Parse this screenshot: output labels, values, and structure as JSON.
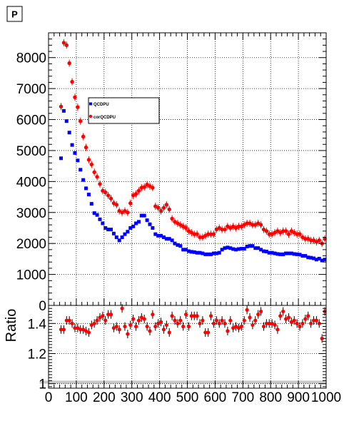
{
  "page_title": "P",
  "chart_data": [
    {
      "type": "scatter",
      "panel": "main",
      "title": "",
      "xlabel": "",
      "ylabel": "",
      "xlim": [
        0,
        1000
      ],
      "ylim": [
        0,
        8800
      ],
      "xticks": [
        0,
        100,
        200,
        300,
        400,
        500,
        600,
        700,
        800,
        900,
        1000
      ],
      "xtick_labels": [
        "0",
        "100",
        "200",
        "300",
        "400",
        "500",
        "600",
        "700",
        "800",
        "900",
        "1000"
      ],
      "yticks": [
        0,
        1000,
        2000,
        3000,
        4000,
        5000,
        6000,
        7000,
        8000
      ],
      "ytick_labels": [
        "0",
        "1000",
        "2000",
        "3000",
        "4000",
        "5000",
        "6000",
        "7000",
        "8000"
      ],
      "grid": true,
      "legend_position": "upper-left",
      "series": [
        {
          "name": "QCDPU",
          "color": "#0000ff",
          "marker": "square",
          "x": [
            45,
            55,
            65,
            75,
            85,
            95,
            105,
            115,
            125,
            135,
            145,
            155,
            165,
            175,
            185,
            195,
            205,
            215,
            225,
            235,
            245,
            255,
            265,
            275,
            285,
            295,
            305,
            315,
            325,
            335,
            345,
            355,
            365,
            375,
            385,
            395,
            405,
            415,
            425,
            435,
            445,
            455,
            465,
            475,
            485,
            495,
            505,
            515,
            525,
            535,
            545,
            555,
            565,
            575,
            585,
            595,
            605,
            615,
            625,
            635,
            645,
            655,
            665,
            675,
            685,
            695,
            705,
            715,
            725,
            735,
            745,
            755,
            765,
            775,
            785,
            795,
            805,
            815,
            825,
            835,
            845,
            855,
            865,
            875,
            885,
            895,
            905,
            915,
            925,
            935,
            945,
            955,
            965,
            975,
            985,
            995
          ],
          "y": [
            4750,
            6280,
            5950,
            5580,
            5180,
            4920,
            4680,
            4380,
            4050,
            3780,
            3580,
            3280,
            2980,
            2920,
            2780,
            2650,
            2500,
            2450,
            2450,
            2320,
            2200,
            2100,
            2200,
            2300,
            2380,
            2500,
            2550,
            2650,
            2700,
            2900,
            2900,
            2750,
            2620,
            2500,
            2300,
            2250,
            2250,
            2200,
            2150,
            2150,
            2100,
            2000,
            1950,
            1920,
            1800,
            1800,
            1750,
            1730,
            1720,
            1700,
            1700,
            1680,
            1650,
            1650,
            1650,
            1680,
            1680,
            1700,
            1800,
            1850,
            1870,
            1850,
            1820,
            1800,
            1820,
            1830,
            1830,
            1900,
            1920,
            1920,
            1850,
            1850,
            1800,
            1750,
            1740,
            1700,
            1700,
            1680,
            1660,
            1650,
            1650,
            1680,
            1680,
            1680,
            1660,
            1650,
            1640,
            1600,
            1600,
            1550,
            1540,
            1520,
            1480,
            1510,
            1450,
            1480
          ]
        },
        {
          "name": "corQCDPU",
          "color": "#ff0000",
          "marker": "circle",
          "x": [
            45,
            55,
            65,
            75,
            85,
            95,
            105,
            115,
            125,
            135,
            145,
            155,
            165,
            175,
            185,
            195,
            205,
            215,
            225,
            235,
            245,
            255,
            265,
            275,
            285,
            295,
            305,
            315,
            325,
            335,
            345,
            355,
            365,
            375,
            385,
            395,
            405,
            415,
            425,
            435,
            445,
            455,
            465,
            475,
            485,
            495,
            505,
            515,
            525,
            535,
            545,
            555,
            565,
            575,
            585,
            595,
            605,
            615,
            625,
            635,
            645,
            655,
            665,
            675,
            685,
            695,
            705,
            715,
            725,
            735,
            745,
            755,
            765,
            775,
            785,
            795,
            805,
            815,
            825,
            835,
            845,
            855,
            865,
            875,
            885,
            895,
            905,
            915,
            925,
            935,
            945,
            955,
            965,
            975,
            985,
            995
          ],
          "y": [
            6420,
            8480,
            8400,
            7820,
            7220,
            6720,
            6400,
            5950,
            5450,
            5100,
            4700,
            4550,
            4300,
            4150,
            3920,
            3700,
            3650,
            3550,
            3450,
            3300,
            3250,
            3050,
            3000,
            3050,
            3000,
            3300,
            3550,
            3600,
            3700,
            3800,
            3820,
            3900,
            3850,
            3800,
            3200,
            3150,
            3050,
            3150,
            3250,
            3100,
            2800,
            2700,
            2650,
            2600,
            2550,
            2500,
            2400,
            2350,
            2300,
            2300,
            2200,
            2200,
            2250,
            2300,
            2300,
            2300,
            2450,
            2500,
            2450,
            2450,
            2550,
            2500,
            2550,
            2500,
            2550,
            2550,
            2600,
            2650,
            2650,
            2600,
            2600,
            2650,
            2600,
            2450,
            2400,
            2300,
            2300,
            2350,
            2400,
            2350,
            2400,
            2400,
            2300,
            2400,
            2350,
            2300,
            2300,
            2200,
            2150,
            2150,
            2100,
            2100,
            2050,
            2100,
            2000,
            2150
          ]
        }
      ]
    },
    {
      "type": "scatter",
      "panel": "ratio",
      "title": "",
      "xlabel": "",
      "ylabel": "Ratio",
      "xlim": [
        0,
        1000
      ],
      "ylim": [
        0.97,
        1.52
      ],
      "yticks": [
        1.0,
        1.2,
        1.4
      ],
      "ytick_labels": [
        "1",
        "1.2",
        "1.4"
      ],
      "grid": true,
      "band": {
        "color": "#c8c8c8",
        "low": 1.0,
        "high": 1.02
      },
      "series": [
        {
          "name": "",
          "color": "#ff0000",
          "marker": "circle",
          "x": [
            45,
            55,
            65,
            75,
            85,
            95,
            105,
            115,
            125,
            135,
            145,
            155,
            165,
            175,
            185,
            195,
            205,
            215,
            225,
            235,
            245,
            255,
            265,
            275,
            285,
            295,
            305,
            315,
            325,
            335,
            345,
            355,
            365,
            375,
            385,
            395,
            405,
            415,
            425,
            435,
            445,
            455,
            465,
            475,
            485,
            495,
            505,
            515,
            525,
            535,
            545,
            555,
            565,
            575,
            585,
            595,
            605,
            615,
            625,
            635,
            645,
            655,
            665,
            675,
            685,
            695,
            705,
            715,
            725,
            735,
            745,
            755,
            765,
            775,
            785,
            795,
            805,
            815,
            825,
            835,
            845,
            855,
            865,
            875,
            885,
            895,
            905,
            915,
            925,
            935,
            945,
            955,
            965,
            975,
            985,
            995
          ],
          "y": [
            1.36,
            1.36,
            1.42,
            1.42,
            1.4,
            1.37,
            1.37,
            1.36,
            1.36,
            1.35,
            1.34,
            1.39,
            1.4,
            1.42,
            1.44,
            1.45,
            1.42,
            1.46,
            1.46,
            1.37,
            1.38,
            1.36,
            1.5,
            1.38,
            1.33,
            1.39,
            1.43,
            1.38,
            1.42,
            1.44,
            1.43,
            1.38,
            1.35,
            1.46,
            1.38,
            1.4,
            1.41,
            1.36,
            1.39,
            1.34,
            1.45,
            1.42,
            1.4,
            1.42,
            1.38,
            1.46,
            1.38,
            1.45,
            1.45,
            1.45,
            1.4,
            1.42,
            1.34,
            1.34,
            1.45,
            1.4,
            1.42,
            1.4,
            1.42,
            1.4,
            1.35,
            1.42,
            1.37,
            1.38,
            1.37,
            1.38,
            1.42,
            1.49,
            1.44,
            1.39,
            1.42,
            1.46,
            1.48,
            1.38,
            1.4,
            1.4,
            1.4,
            1.39,
            1.36,
            1.45,
            1.48,
            1.43,
            1.44,
            1.41,
            1.42,
            1.4,
            1.38,
            1.4,
            1.43,
            1.45,
            1.4,
            1.42,
            1.42,
            1.4,
            1.3,
            1.48
          ]
        }
      ]
    }
  ]
}
